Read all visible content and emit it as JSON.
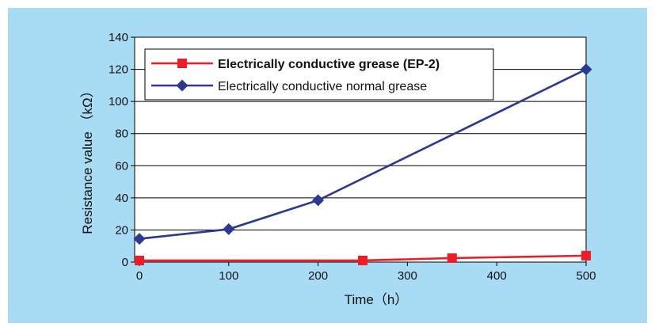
{
  "chart_data": {
    "type": "line",
    "title": "",
    "xlabel": "Time（h）",
    "ylabel": "Resistance value （kΩ）",
    "xlim": [
      0,
      500
    ],
    "ylim": [
      0,
      140
    ],
    "x_ticks": [
      "0",
      "100",
      "200",
      "300",
      "400",
      "500"
    ],
    "y_ticks": [
      "0",
      "20",
      "40",
      "60",
      "80",
      "100",
      "120",
      "140"
    ],
    "x_tick_values": [
      0,
      100,
      200,
      300,
      400,
      500
    ],
    "y_tick_values": [
      0,
      20,
      40,
      60,
      80,
      100,
      120,
      140
    ],
    "grid": "horizontal",
    "legend_position": "top-left",
    "series": [
      {
        "name": "Electrically conductive grease (EP-2)",
        "name_bold": true,
        "color": "#ee1c25",
        "marker": "square",
        "x": [
          0,
          250,
          350,
          500
        ],
        "y": [
          1,
          1,
          2.5,
          4
        ]
      },
      {
        "name": "Electrically conductive normal grease",
        "name_bold": false,
        "color": "#2b3990",
        "marker": "diamond",
        "x": [
          0,
          100,
          200,
          500
        ],
        "y": [
          14.5,
          20.5,
          38.5,
          120
        ]
      }
    ]
  },
  "colors": {
    "panel_background": "#a8dcf4",
    "plot_background": "#ffffff",
    "gridline": "#000000"
  }
}
